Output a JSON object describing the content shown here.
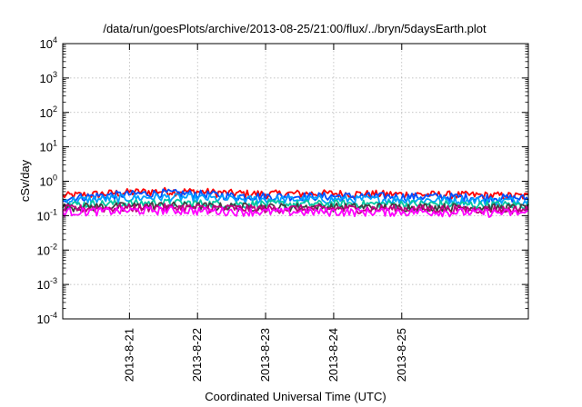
{
  "chart_data": {
    "type": "line",
    "title": "/data/run/goesPlots/archive/2013-08-25/21:00/flux/../bryn/5daysEarth.plot",
    "xlabel": "Coordinated Universal Time (UTC)",
    "ylabel": "cSv/day",
    "yscale": "log",
    "ylim": [
      0.0001,
      10000
    ],
    "xlim": [
      -0.98,
      5.86
    ],
    "grid": true,
    "legend": "none",
    "x_ticks": [
      {
        "x": 0,
        "label": "2013-8-21"
      },
      {
        "x": 1,
        "label": "2013-8-22"
      },
      {
        "x": 2,
        "label": "2013-8-23"
      },
      {
        "x": 3,
        "label": "2013-8-24"
      },
      {
        "x": 4,
        "label": "2013-8-25"
      }
    ],
    "y_ticks": [
      {
        "value": 0.0001,
        "base": "10",
        "exp": "-4"
      },
      {
        "value": 0.001,
        "base": "10",
        "exp": "-3"
      },
      {
        "value": 0.01,
        "base": "10",
        "exp": "-2"
      },
      {
        "value": 0.1,
        "base": "10",
        "exp": "-1"
      },
      {
        "value": 1,
        "base": "10",
        "exp": "0"
      },
      {
        "value": 10,
        "base": "10",
        "exp": "1"
      },
      {
        "value": 100,
        "base": "10",
        "exp": "2"
      },
      {
        "value": 1000,
        "base": "10",
        "exp": "3"
      },
      {
        "value": 10000,
        "base": "10",
        "exp": "4"
      }
    ],
    "x": [
      -0.98,
      -0.5,
      0,
      0.5,
      1,
      1.5,
      2,
      2.5,
      3,
      3.5,
      4,
      4.5,
      5,
      5.86
    ],
    "series": [
      {
        "color": "#ff0000",
        "values": [
          0.38,
          0.42,
          0.48,
          0.52,
          0.5,
          0.45,
          0.43,
          0.44,
          0.44,
          0.43,
          0.42,
          0.41,
          0.4,
          0.37
        ]
      },
      {
        "color": "#0050ff",
        "values": [
          0.32,
          0.38,
          0.42,
          0.46,
          0.43,
          0.38,
          0.37,
          0.37,
          0.37,
          0.37,
          0.36,
          0.36,
          0.35,
          0.32
        ]
      },
      {
        "color": "#00a0ff",
        "values": [
          0.28,
          0.3,
          0.33,
          0.35,
          0.33,
          0.3,
          0.3,
          0.3,
          0.3,
          0.3,
          0.29,
          0.29,
          0.28,
          0.27
        ]
      },
      {
        "color": "#00c8a0",
        "values": [
          0.21,
          0.22,
          0.23,
          0.24,
          0.23,
          0.22,
          0.22,
          0.22,
          0.22,
          0.22,
          0.22,
          0.22,
          0.21,
          0.21
        ]
      },
      {
        "color": "#404040",
        "values": [
          0.18,
          0.185,
          0.19,
          0.2,
          0.19,
          0.185,
          0.18,
          0.18,
          0.18,
          0.18,
          0.18,
          0.18,
          0.175,
          0.17
        ]
      },
      {
        "color": "#c00080",
        "values": [
          0.16,
          0.165,
          0.17,
          0.175,
          0.17,
          0.165,
          0.16,
          0.16,
          0.16,
          0.16,
          0.16,
          0.16,
          0.155,
          0.15
        ]
      },
      {
        "color": "#ff00ff",
        "values": [
          0.13,
          0.135,
          0.14,
          0.145,
          0.14,
          0.135,
          0.13,
          0.13,
          0.13,
          0.13,
          0.13,
          0.13,
          0.125,
          0.12
        ]
      }
    ]
  }
}
